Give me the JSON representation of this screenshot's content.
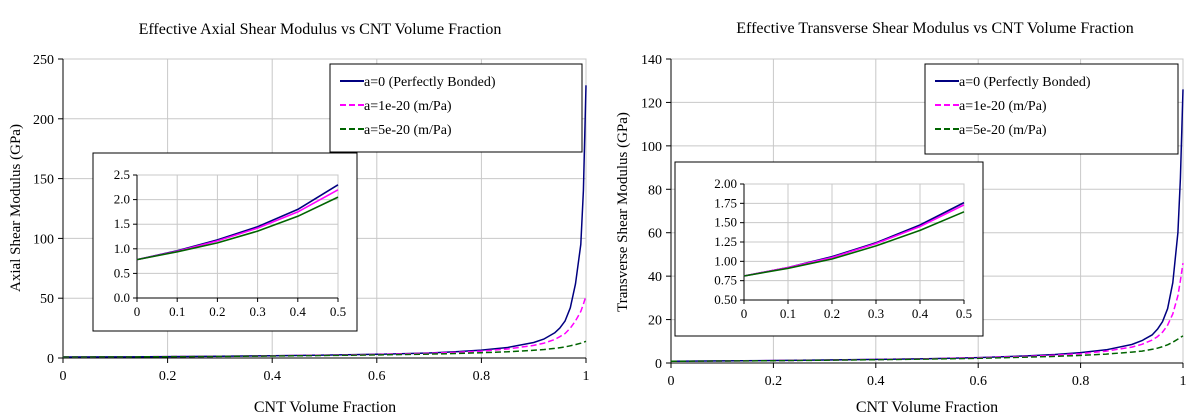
{
  "chart_data": [
    {
      "type": "line",
      "title": "Effective Axial Shear Modulus vs CNT Volume Fraction",
      "xlabel": "CNT Volume Fraction",
      "ylabel": "Axial Shear Modulus (GPa)",
      "xlim": [
        0,
        1
      ],
      "ylim": [
        0,
        250
      ],
      "xticks": [
        "0",
        "0.2",
        "0.4",
        "0.6",
        "0.8",
        "1"
      ],
      "yticks": [
        "0",
        "50",
        "100",
        "150",
        "200",
        "250"
      ],
      "grid": true,
      "legend_position": "top-right",
      "x": [
        0,
        0.1,
        0.2,
        0.3,
        0.4,
        0.5,
        0.6,
        0.7,
        0.75,
        0.8,
        0.85,
        0.9,
        0.92,
        0.94,
        0.95,
        0.96,
        0.97,
        0.98,
        0.99,
        0.995,
        1.0
      ],
      "series": [
        {
          "name": "a=0 (Perfectly Bonded)",
          "color": "#000080",
          "dash": "solid",
          "values": [
            0.8,
            0.95,
            1.2,
            1.5,
            1.9,
            2.4,
            3.1,
            4.2,
            5.2,
            6.6,
            8.8,
            13,
            16,
            21,
            25,
            31,
            42,
            62,
            95,
            140,
            228
          ]
        },
        {
          "name": "a=1e-20 (m/Pa)",
          "color": "#FF00FF",
          "dash": "dashed",
          "values": [
            0.8,
            0.94,
            1.15,
            1.45,
            1.85,
            2.3,
            2.9,
            3.9,
            4.7,
            5.8,
            7.5,
            10.5,
            12.5,
            15.5,
            17.8,
            20.5,
            25,
            31,
            39,
            45,
            52
          ]
        },
        {
          "name": "a=5e-20 (m/Pa)",
          "color": "#006400",
          "dash": "dashed",
          "values": [
            0.8,
            0.92,
            1.1,
            1.35,
            1.7,
            2.1,
            2.6,
            3.3,
            3.8,
            4.4,
            5.2,
            6.4,
            7.1,
            8.0,
            8.6,
            9.3,
            10.2,
            11.2,
            12.4,
            13.1,
            14
          ]
        }
      ],
      "inset": {
        "xlim": [
          0,
          0.5
        ],
        "ylim": [
          0,
          2.5
        ],
        "xticks": [
          "0",
          "0.1",
          "0.2",
          "0.3",
          "0.4",
          "0.5"
        ],
        "yticks": [
          "0.0",
          "0.5",
          "1.0",
          "1.5",
          "2.0",
          "2.5"
        ],
        "x": [
          0,
          0.1,
          0.2,
          0.3,
          0.4,
          0.5
        ],
        "series": [
          {
            "values": [
              0.78,
              0.96,
              1.18,
              1.45,
              1.8,
              2.3
            ]
          },
          {
            "values": [
              0.78,
              0.95,
              1.16,
              1.42,
              1.75,
              2.2
            ]
          },
          {
            "values": [
              0.78,
              0.94,
              1.12,
              1.36,
              1.66,
              2.05
            ]
          }
        ]
      }
    },
    {
      "type": "line",
      "title": "Effective Transverse Shear Modulus vs CNT Volume Fraction",
      "xlabel": "CNT Volume Fraction",
      "ylabel": "Transverse Shear Modulus (GPa)",
      "xlim": [
        0,
        1
      ],
      "ylim": [
        0,
        140
      ],
      "xticks": [
        "0",
        "0.2",
        "0.4",
        "0.6",
        "0.8",
        "1"
      ],
      "yticks": [
        "0",
        "20",
        "40",
        "60",
        "80",
        "100",
        "120",
        "140"
      ],
      "grid": true,
      "legend_position": "top-right",
      "x": [
        0,
        0.1,
        0.2,
        0.3,
        0.4,
        0.5,
        0.6,
        0.7,
        0.75,
        0.8,
        0.85,
        0.9,
        0.92,
        0.94,
        0.95,
        0.96,
        0.97,
        0.98,
        0.99,
        0.995,
        1.0
      ],
      "series": [
        {
          "name": "a=0 (Perfectly Bonded)",
          "color": "#000080",
          "dash": "solid",
          "values": [
            0.8,
            0.95,
            1.15,
            1.4,
            1.65,
            2.0,
            2.5,
            3.3,
            3.9,
            4.8,
            6.1,
            8.5,
            10.3,
            13,
            15.5,
            19,
            25,
            37,
            60,
            85,
            126
          ]
        },
        {
          "name": "a=1e-20 (m/Pa)",
          "color": "#FF00FF",
          "dash": "dashed",
          "values": [
            0.8,
            0.94,
            1.12,
            1.35,
            1.6,
            1.93,
            2.4,
            3.1,
            3.6,
            4.3,
            5.5,
            7.3,
            8.6,
            10.6,
            12.1,
            14.2,
            17.4,
            22.6,
            31,
            38,
            46
          ]
        },
        {
          "name": "a=5e-20 (m/Pa)",
          "color": "#006400",
          "dash": "dashed",
          "values": [
            0.8,
            0.92,
            1.08,
            1.28,
            1.52,
            1.8,
            2.15,
            2.7,
            3.05,
            3.5,
            4.1,
            5.0,
            5.5,
            6.3,
            6.8,
            7.5,
            8.4,
            9.6,
            11.0,
            11.8,
            12.5
          ]
        }
      ],
      "inset": {
        "xlim": [
          0,
          0.5
        ],
        "ylim": [
          0.5,
          2.0
        ],
        "xticks": [
          "0",
          "0.1",
          "0.2",
          "0.3",
          "0.4",
          "0.5"
        ],
        "yticks": [
          "0.50",
          "0.75",
          "1.00",
          "1.25",
          "1.50",
          "1.75",
          "2.00"
        ],
        "x": [
          0,
          0.1,
          0.2,
          0.3,
          0.4,
          0.5
        ],
        "series": [
          {
            "values": [
              0.81,
              0.92,
              1.06,
              1.24,
              1.47,
              1.76
            ]
          },
          {
            "values": [
              0.81,
              0.92,
              1.05,
              1.23,
              1.45,
              1.73
            ]
          },
          {
            "values": [
              0.81,
              0.91,
              1.03,
              1.2,
              1.4,
              1.64
            ]
          }
        ]
      }
    }
  ]
}
